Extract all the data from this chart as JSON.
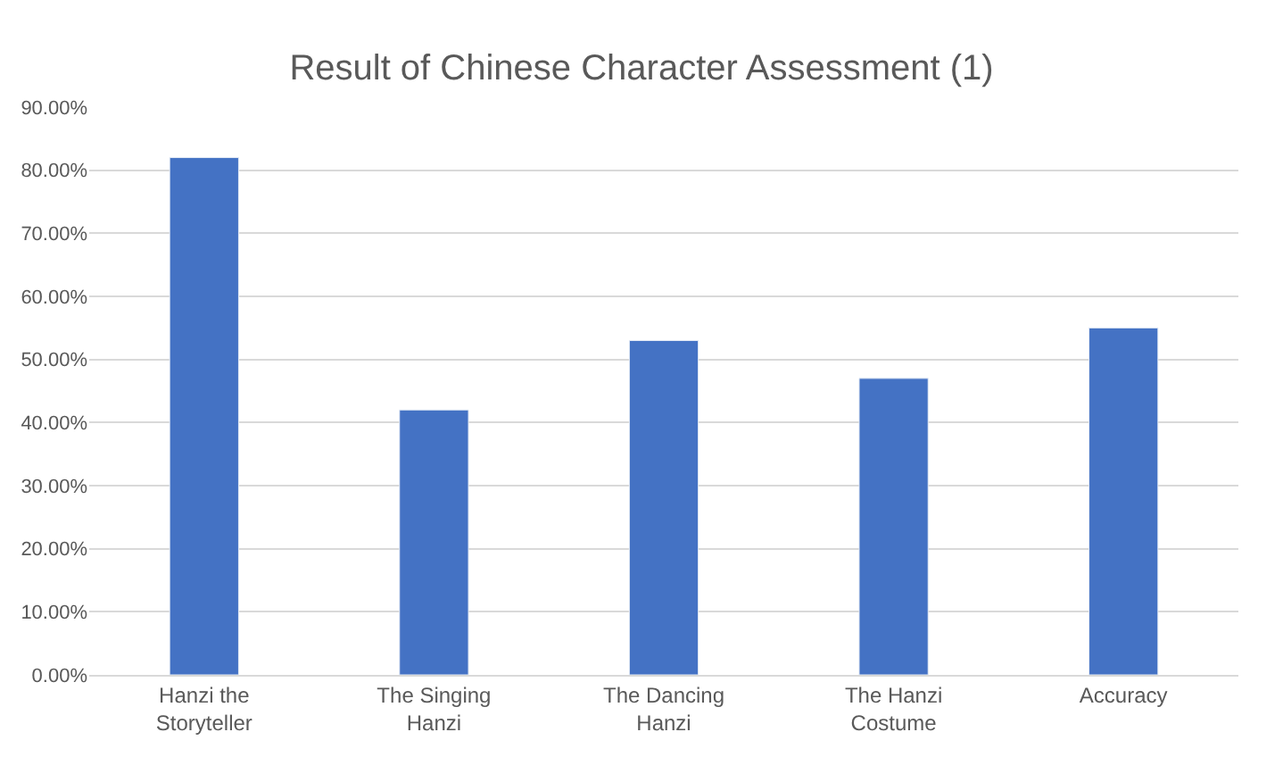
{
  "chart_data": {
    "type": "bar",
    "title": "Result of Chinese Character Assessment (1)",
    "categories": [
      "Hanzi the Storyteller",
      "The Singing Hanzi",
      "The Dancing Hanzi",
      "The Hanzi Costume",
      "Accuracy"
    ],
    "values": [
      82,
      42,
      53,
      47,
      55
    ],
    "color": "#4472c4",
    "ylim": [
      0,
      90
    ],
    "yticks": [
      {
        "value": 0,
        "label": "0.00%"
      },
      {
        "value": 10,
        "label": "10.00%"
      },
      {
        "value": 20,
        "label": "20.00%"
      },
      {
        "value": 30,
        "label": "30.00%"
      },
      {
        "value": 40,
        "label": "40.00%"
      },
      {
        "value": 50,
        "label": "50.00%"
      },
      {
        "value": 60,
        "label": "60.00%"
      },
      {
        "value": 70,
        "label": "70.00%"
      },
      {
        "value": 80,
        "label": "80.00%"
      },
      {
        "value": 90,
        "label": "90.00%"
      }
    ],
    "grid": "y"
  }
}
